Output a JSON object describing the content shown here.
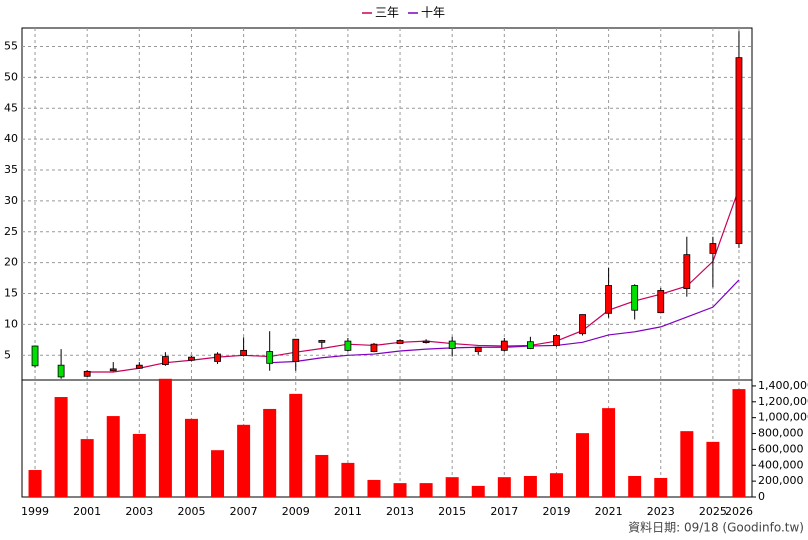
{
  "chart_data": {
    "type": "candlestick",
    "x": [
      1999,
      2000,
      2001,
      2002,
      2003,
      2004,
      2005,
      2006,
      2007,
      2008,
      2009,
      2010,
      2011,
      2012,
      2013,
      2014,
      2015,
      2016,
      2017,
      2018,
      2019,
      2020,
      2021,
      2022,
      2023,
      2024,
      2025,
      2026
    ],
    "xlim": [
      1998.5,
      2026.5
    ],
    "xticks": [
      1999,
      2001,
      2003,
      2005,
      2007,
      2009,
      2011,
      2013,
      2015,
      2017,
      2019,
      2021,
      2023,
      2025,
      2026
    ],
    "ylim": [
      1,
      58
    ],
    "yticks": [
      5,
      10,
      15,
      20,
      25,
      30,
      35,
      40,
      45,
      50,
      55
    ],
    "y2lim": [
      0,
      1500000
    ],
    "y2ticks": [
      0,
      {
        "value": 200000,
        "label": "200,000"
      },
      {
        "value": 400000,
        "label": "400,000"
      },
      {
        "value": 600000,
        "label": "600,000"
      },
      {
        "value": 800000,
        "label": "800,000"
      },
      {
        "value": 1000000,
        "label": "1,000,000"
      },
      {
        "value": 1200000,
        "label": "1,200,000"
      },
      {
        "value": 1400000,
        "label": "1,400,000"
      }
    ],
    "open": [
      6.5,
      3.4,
      1.6,
      2.5,
      2.9,
      3.5,
      4.2,
      4.0,
      5.0,
      5.6,
      4.0,
      7.1,
      7.3,
      5.6,
      6.9,
      7.2,
      7.3,
      5.6,
      5.8,
      7.2,
      6.6,
      8.5,
      11.8,
      16.3,
      11.9,
      15.8,
      21.5,
      23.1
    ],
    "close": [
      3.3,
      1.5,
      2.4,
      2.8,
      3.4,
      4.8,
      4.7,
      5.2,
      5.8,
      3.7,
      7.6,
      7.4,
      5.8,
      6.8,
      7.4,
      7.3,
      6.1,
      6.3,
      7.3,
      6.1,
      8.2,
      11.6,
      16.3,
      12.3,
      15.5,
      21.3,
      23.1,
      53.2
    ],
    "high": [
      6.6,
      6.0,
      2.6,
      3.9,
      3.9,
      5.5,
      4.9,
      5.5,
      7.9,
      8.9,
      7.6,
      7.5,
      7.8,
      7.0,
      7.6,
      7.6,
      8.0,
      6.4,
      7.8,
      8.0,
      8.4,
      11.6,
      19.2,
      16.5,
      15.9,
      24.2,
      24.2,
      57.5
    ],
    "low": [
      3.0,
      1.2,
      1.5,
      2.4,
      2.8,
      3.3,
      4.0,
      3.6,
      4.8,
      2.5,
      2.5,
      6.2,
      5.6,
      5.5,
      6.8,
      6.9,
      4.8,
      5.1,
      5.6,
      6.0,
      6.4,
      8.2,
      11.1,
      10.8,
      11.8,
      14.5,
      16.0,
      22.4
    ],
    "up_color": "#ff0000",
    "down_color": "#00e000",
    "series": [
      {
        "name": "三年",
        "color": "#c8005a",
        "values": [
          null,
          null,
          2.3,
          2.3,
          2.9,
          3.8,
          4.2,
          4.7,
          5.0,
          4.8,
          5.5,
          6.1,
          6.8,
          6.6,
          7.1,
          7.3,
          6.9,
          6.6,
          6.5,
          6.6,
          7.3,
          9.0,
          12.3,
          13.8,
          14.9,
          16.2,
          20.2,
          32.0
        ]
      },
      {
        "name": "十年",
        "color": "#8000c0",
        "values": [
          null,
          null,
          null,
          null,
          null,
          null,
          null,
          null,
          null,
          3.8,
          4.0,
          4.6,
          5.0,
          5.2,
          5.7,
          6.0,
          6.2,
          6.3,
          6.3,
          6.5,
          6.6,
          7.1,
          8.3,
          8.8,
          9.6,
          11.2,
          12.8,
          17.2
        ]
      }
    ],
    "volume": {
      "axis": "y2",
      "color": "#ff0000",
      "values": [
        340000,
        1260000,
        730000,
        1020000,
        795000,
        1490000,
        985000,
        590000,
        910000,
        1110000,
        1300000,
        530000,
        430000,
        215000,
        175000,
        175000,
        250000,
        140000,
        250000,
        265000,
        300000,
        805000,
        1120000,
        265000,
        240000,
        830000,
        695000,
        1360000
      ]
    },
    "grid": true,
    "legend": "top",
    "note": "資料日期: 09/18 (Goodinfo.tw)"
  }
}
